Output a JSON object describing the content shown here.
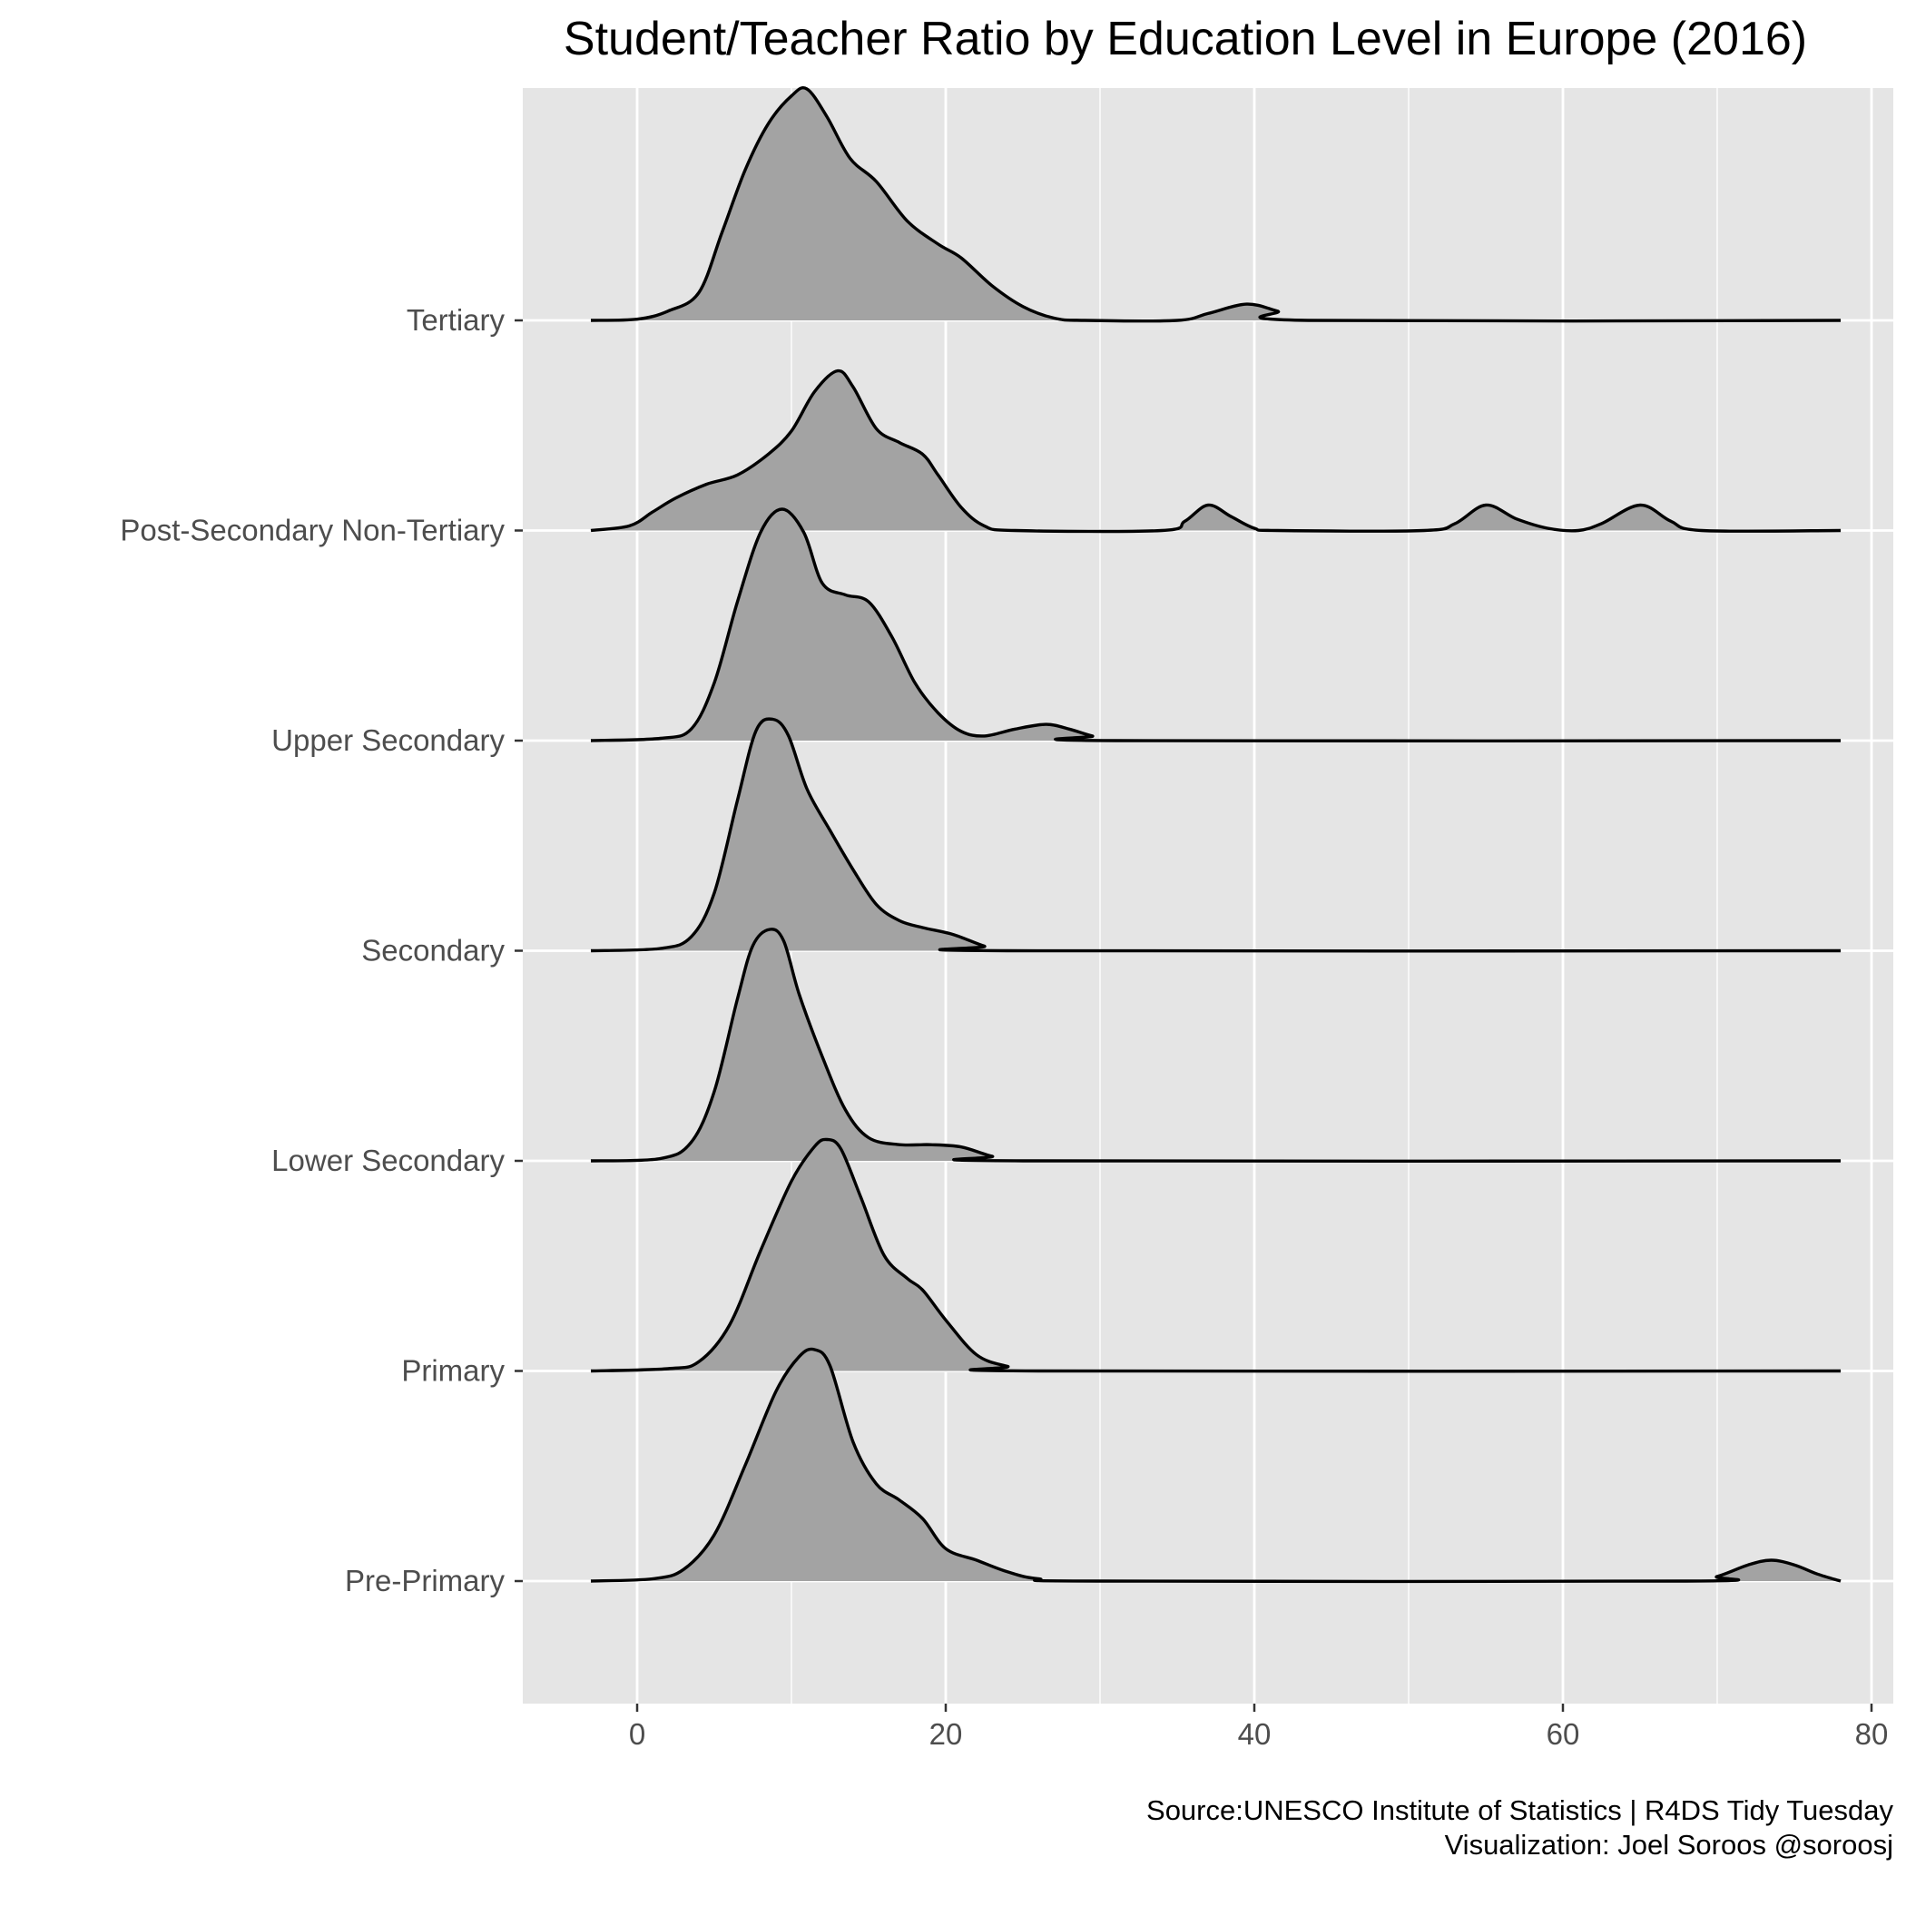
{
  "chart_data": {
    "type": "ridgeline",
    "title": "Student/Teacher Ratio by Education Level in Europe (2016)",
    "xlabel": "",
    "ylabel": "",
    "xlim": [
      -7,
      81
    ],
    "x_ticks": [
      0,
      20,
      40,
      60,
      80
    ],
    "x_range_of_curves": [
      -3,
      78
    ],
    "grid": true,
    "background": "#e5e5e5",
    "fill_color": "#a3a3a3",
    "line_color": "#000000",
    "categories": [
      "Pre-Primary",
      "Primary",
      "Lower Secondary",
      "Secondary",
      "Upper Secondary",
      "Post-Secondary Non-Tertiary",
      "Tertiary"
    ],
    "series": [
      {
        "name": "Pre-Primary",
        "points": [
          [
            -3,
            0
          ],
          [
            1,
            0.01
          ],
          [
            3,
            0.05
          ],
          [
            5,
            0.2
          ],
          [
            7,
            0.5
          ],
          [
            9,
            0.82
          ],
          [
            10.5,
            0.97
          ],
          [
            11.5,
            1.0
          ],
          [
            12.5,
            0.93
          ],
          [
            14,
            0.6
          ],
          [
            15.5,
            0.42
          ],
          [
            17,
            0.35
          ],
          [
            18.5,
            0.27
          ],
          [
            20,
            0.14
          ],
          [
            22,
            0.09
          ],
          [
            24,
            0.04
          ],
          [
            26,
            0.01
          ],
          [
            30,
            0
          ],
          [
            68,
            0
          ],
          [
            70,
            0.02
          ],
          [
            72,
            0.07
          ],
          [
            73.5,
            0.09
          ],
          [
            75,
            0.07
          ],
          [
            76.5,
            0.03
          ],
          [
            78,
            0
          ]
        ]
      },
      {
        "name": "Primary",
        "points": [
          [
            -3,
            0
          ],
          [
            2,
            0.01
          ],
          [
            4,
            0.04
          ],
          [
            6,
            0.2
          ],
          [
            8,
            0.52
          ],
          [
            10,
            0.82
          ],
          [
            11.5,
            0.97
          ],
          [
            12.3,
            1.0
          ],
          [
            13.2,
            0.96
          ],
          [
            14.5,
            0.75
          ],
          [
            16,
            0.5
          ],
          [
            17.5,
            0.4
          ],
          [
            18.5,
            0.35
          ],
          [
            20,
            0.22
          ],
          [
            22,
            0.07
          ],
          [
            24,
            0.02
          ],
          [
            26,
            0
          ],
          [
            78,
            0
          ]
        ]
      },
      {
        "name": "Lower Secondary",
        "points": [
          [
            -3,
            0
          ],
          [
            1.5,
            0.01
          ],
          [
            3.5,
            0.08
          ],
          [
            5,
            0.3
          ],
          [
            6.5,
            0.7
          ],
          [
            7.5,
            0.93
          ],
          [
            8.6,
            1.0
          ],
          [
            9.5,
            0.95
          ],
          [
            10.5,
            0.72
          ],
          [
            12,
            0.45
          ],
          [
            13.5,
            0.22
          ],
          [
            15,
            0.1
          ],
          [
            17,
            0.07
          ],
          [
            19,
            0.07
          ],
          [
            21,
            0.06
          ],
          [
            23,
            0.02
          ],
          [
            25,
            0
          ],
          [
            78,
            0
          ]
        ]
      },
      {
        "name": "Secondary",
        "points": [
          [
            -3,
            0
          ],
          [
            1.5,
            0.01
          ],
          [
            3.5,
            0.06
          ],
          [
            5,
            0.25
          ],
          [
            6.5,
            0.65
          ],
          [
            7.7,
            0.95
          ],
          [
            8.8,
            1.0
          ],
          [
            9.8,
            0.93
          ],
          [
            11,
            0.7
          ],
          [
            12.5,
            0.52
          ],
          [
            14,
            0.35
          ],
          [
            15.5,
            0.2
          ],
          [
            17,
            0.13
          ],
          [
            18.5,
            0.1
          ],
          [
            20.5,
            0.07
          ],
          [
            22.5,
            0.02
          ],
          [
            24,
            0
          ],
          [
            78,
            0
          ]
        ]
      },
      {
        "name": "Upper Secondary",
        "points": [
          [
            -3,
            0
          ],
          [
            1.5,
            0.01
          ],
          [
            3.5,
            0.05
          ],
          [
            5,
            0.25
          ],
          [
            6.5,
            0.6
          ],
          [
            8,
            0.9
          ],
          [
            9.4,
            1.0
          ],
          [
            10.8,
            0.9
          ],
          [
            12,
            0.68
          ],
          [
            13.5,
            0.63
          ],
          [
            15,
            0.6
          ],
          [
            16.5,
            0.45
          ],
          [
            18,
            0.25
          ],
          [
            19.5,
            0.12
          ],
          [
            21,
            0.04
          ],
          [
            22.5,
            0.02
          ],
          [
            24.5,
            0.05
          ],
          [
            26.5,
            0.07
          ],
          [
            28,
            0.05
          ],
          [
            29.5,
            0.02
          ],
          [
            31,
            0
          ],
          [
            78,
            0
          ]
        ]
      },
      {
        "name": "Post-Secondary Non-Tertiary",
        "points": [
          [
            -3,
            0
          ],
          [
            -0.5,
            0.02
          ],
          [
            1,
            0.08
          ],
          [
            2.5,
            0.14
          ],
          [
            4.5,
            0.2
          ],
          [
            6.5,
            0.24
          ],
          [
            8.5,
            0.33
          ],
          [
            10,
            0.43
          ],
          [
            11.5,
            0.6
          ],
          [
            13,
            0.69
          ],
          [
            14,
            0.62
          ],
          [
            15.5,
            0.44
          ],
          [
            17,
            0.38
          ],
          [
            18.5,
            0.33
          ],
          [
            19.5,
            0.24
          ],
          [
            21,
            0.1
          ],
          [
            22.5,
            0.02
          ],
          [
            24.5,
            0
          ],
          [
            34,
            0
          ],
          [
            35.5,
            0.04
          ],
          [
            37,
            0.11
          ],
          [
            38.5,
            0.06
          ],
          [
            40,
            0.01
          ],
          [
            41.5,
            0
          ],
          [
            51,
            0
          ],
          [
            53,
            0.03
          ],
          [
            55,
            0.11
          ],
          [
            57,
            0.05
          ],
          [
            59,
            0.01
          ],
          [
            61,
            0
          ],
          [
            62.5,
            0.03
          ],
          [
            65,
            0.11
          ],
          [
            67,
            0.04
          ],
          [
            69,
            0
          ],
          [
            78,
            0
          ]
        ]
      },
      {
        "name": "Tertiary",
        "points": [
          [
            -3,
            0
          ],
          [
            0,
            0.005
          ],
          [
            2,
            0.04
          ],
          [
            4,
            0.12
          ],
          [
            5.5,
            0.38
          ],
          [
            7,
            0.65
          ],
          [
            8.5,
            0.85
          ],
          [
            10,
            0.97
          ],
          [
            11,
            1.0
          ],
          [
            12.3,
            0.88
          ],
          [
            13.8,
            0.7
          ],
          [
            15.5,
            0.6
          ],
          [
            17.5,
            0.43
          ],
          [
            19.5,
            0.33
          ],
          [
            21,
            0.27
          ],
          [
            23,
            0.15
          ],
          [
            25,
            0.06
          ],
          [
            27,
            0.01
          ],
          [
            29,
            0
          ],
          [
            35,
            0
          ],
          [
            37,
            0.03
          ],
          [
            39.5,
            0.07
          ],
          [
            41.5,
            0.04
          ],
          [
            43.5,
            0
          ],
          [
            78,
            0
          ]
        ]
      }
    ]
  },
  "caption": {
    "line1": "Source:UNESCO Institute of Statistics  |  R4DS Tidy Tuesday",
    "line2": "Visualization: Joel Soroos @soroosj"
  }
}
